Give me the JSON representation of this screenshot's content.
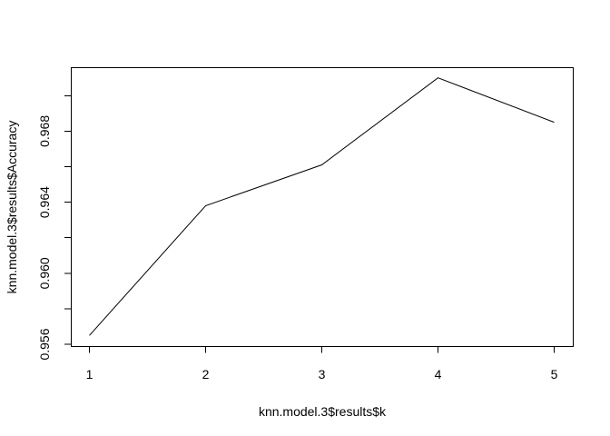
{
  "chart_data": {
    "type": "line",
    "title": "",
    "xlabel": "knn.model.3$results$k",
    "ylabel": "knn.model.3$results$Accuracy",
    "x": [
      1,
      2,
      3,
      4,
      5
    ],
    "series": [
      {
        "values": [
          0.9565,
          0.9638,
          0.9661,
          0.971,
          0.9685
        ],
        "color": "#000000"
      }
    ],
    "xlim": [
      0.84,
      5.16
    ],
    "ylim": [
      0.9559,
      0.9716
    ],
    "x_ticks": [
      1,
      2,
      3,
      4,
      5
    ],
    "x_tick_labels": [
      "1",
      "2",
      "3",
      "4",
      "5"
    ],
    "y_ticks": [
      0.956,
      0.958,
      0.96,
      0.962,
      0.964,
      0.966,
      0.968,
      0.97
    ],
    "y_tick_labels": [
      "0.956",
      "",
      "0.960",
      "",
      "0.964",
      "",
      "0.968",
      ""
    ],
    "grid": false,
    "legend": "none"
  }
}
